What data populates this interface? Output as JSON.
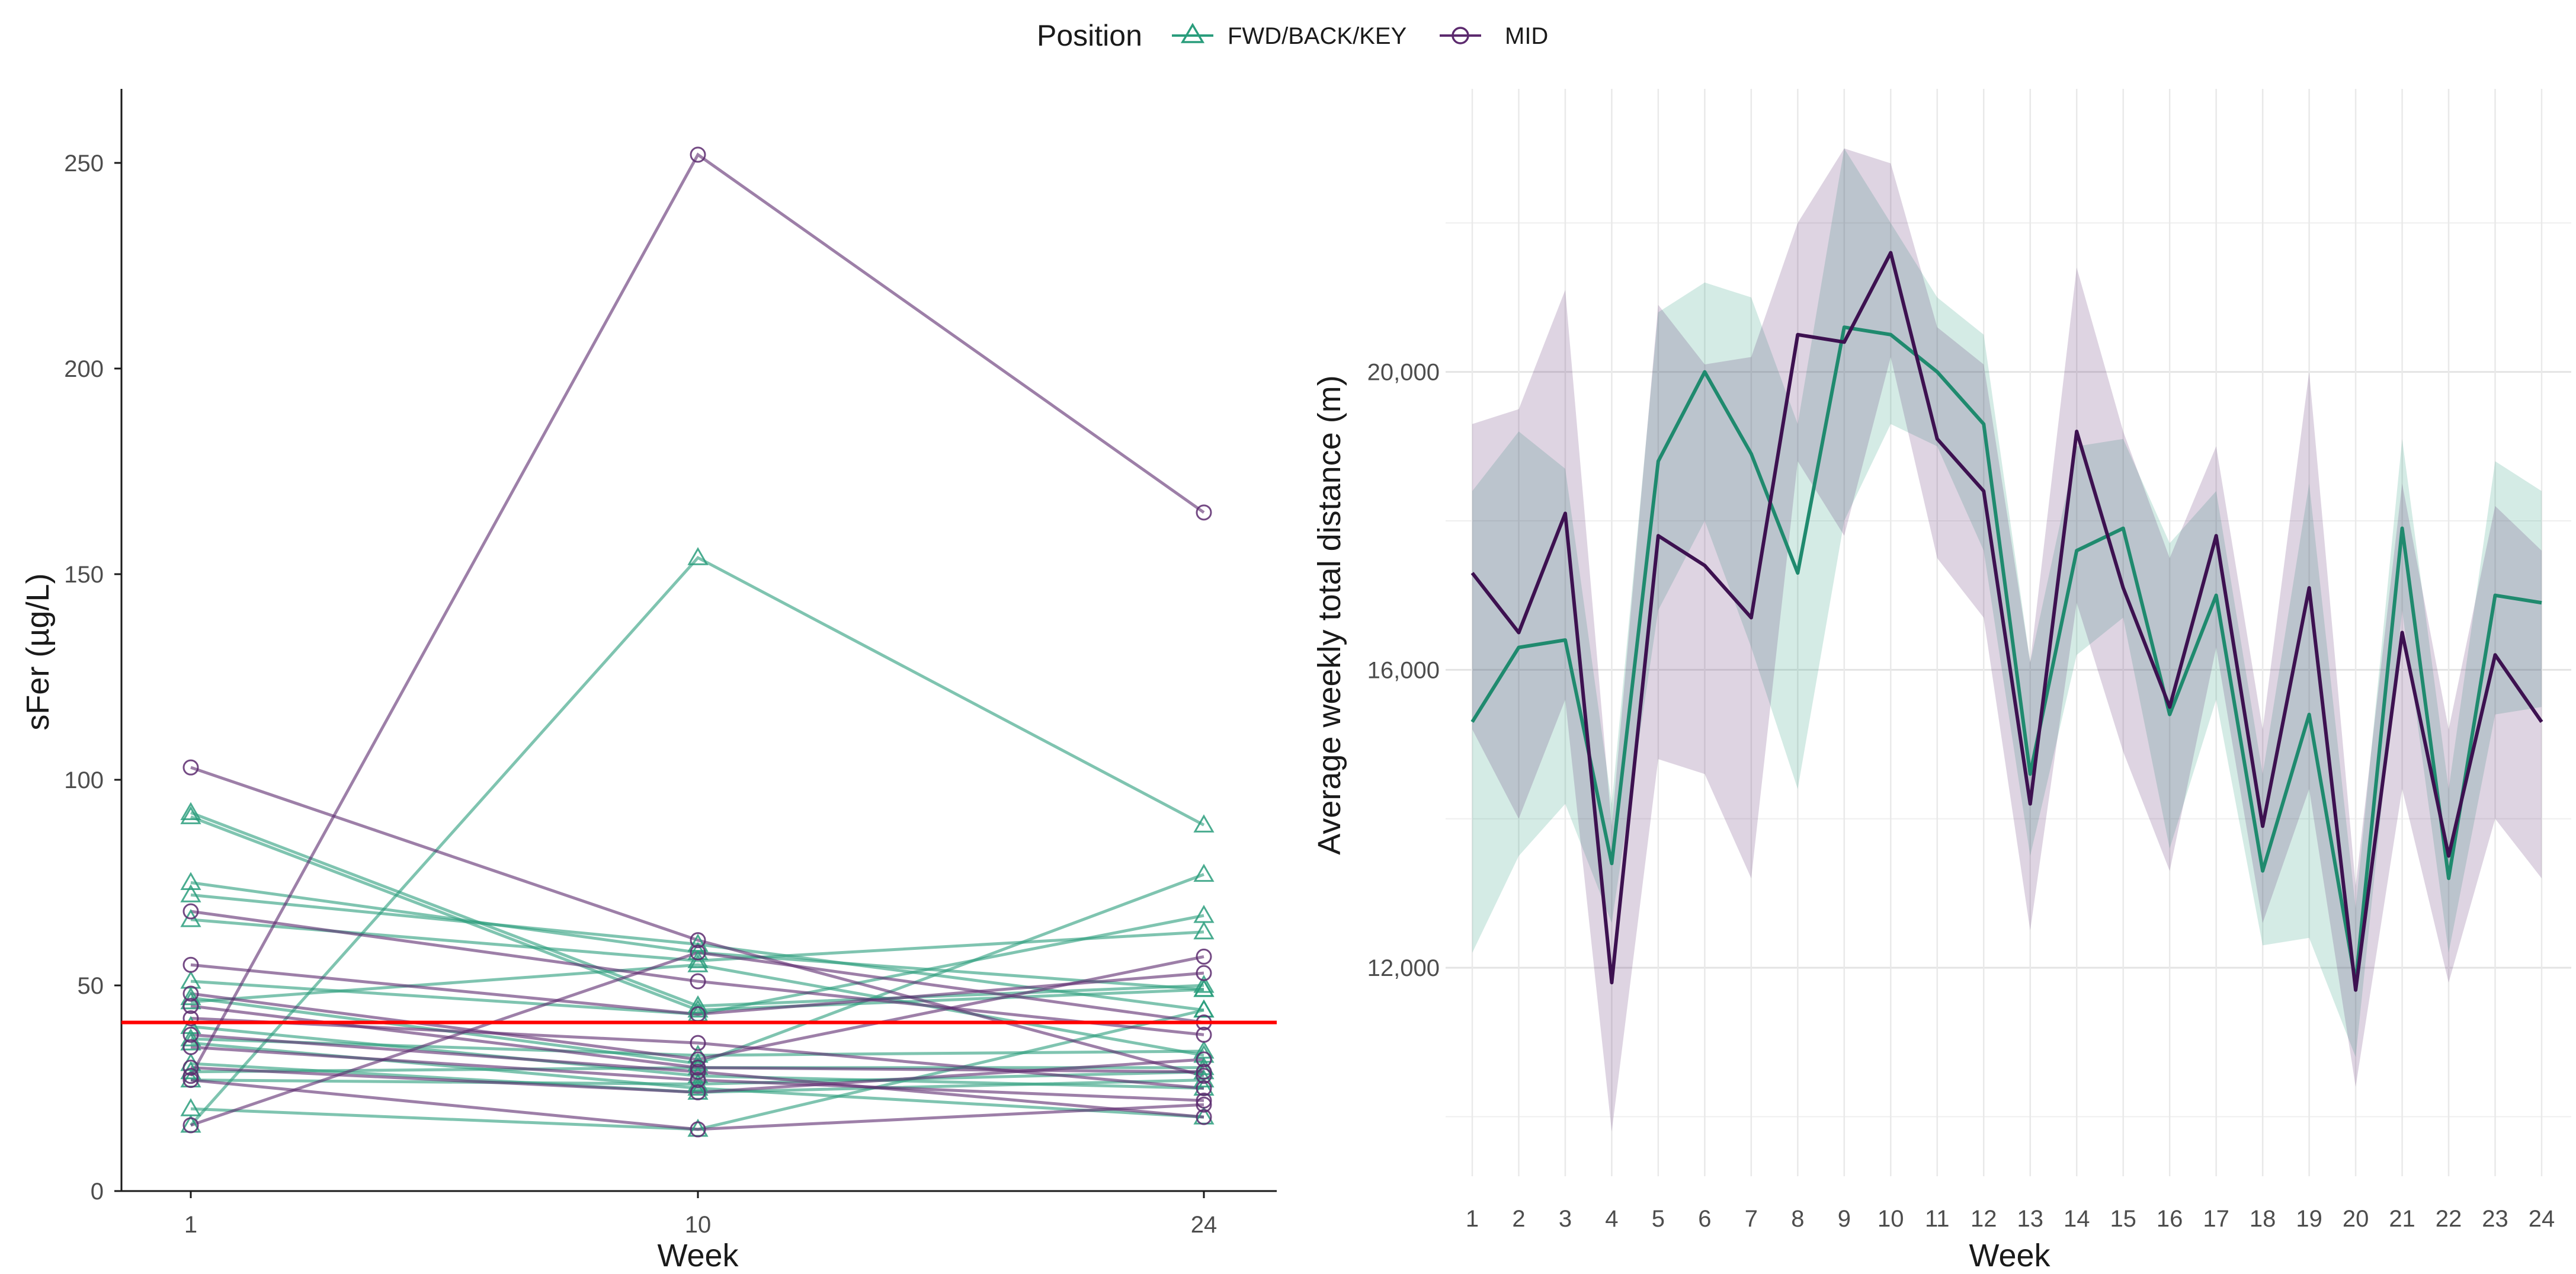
{
  "legend": {
    "title": "Position",
    "entries": [
      {
        "key": "FWD",
        "label": "FWD/BACK/KEY",
        "color": "#2a9d7c",
        "marker": "triangle"
      },
      {
        "key": "MID",
        "label": "MID",
        "color": "#5c2a6e",
        "marker": "circle"
      }
    ]
  },
  "reference_line_color": "#ff0000",
  "chart_data": [
    {
      "type": "line",
      "title": "",
      "xlabel": "Week",
      "ylabel": "sFer (µg/L)",
      "x_categories": [
        "1",
        "10",
        "24"
      ],
      "ylim": [
        0,
        268
      ],
      "y_ticks": [
        0,
        50,
        100,
        150,
        200,
        250
      ],
      "reference_line": 41,
      "series": [
        {
          "position": "FWD",
          "values": [
            92,
            45,
            50
          ]
        },
        {
          "position": "FWD",
          "values": [
            91,
            44,
            49
          ]
        },
        {
          "position": "FWD",
          "values": [
            75,
            58,
            49
          ]
        },
        {
          "position": "FWD",
          "values": [
            72,
            60,
            44
          ]
        },
        {
          "position": "FWD",
          "values": [
            66,
            56,
            63
          ]
        },
        {
          "position": "FWD",
          "values": [
            51,
            43,
            67
          ]
        },
        {
          "position": "FWD",
          "values": [
            47,
            31,
            77
          ]
        },
        {
          "position": "FWD",
          "values": [
            46,
            55,
            33
          ]
        },
        {
          "position": "FWD",
          "values": [
            37,
            33,
            34
          ]
        },
        {
          "position": "FWD",
          "values": [
            29,
            30,
            30
          ]
        },
        {
          "position": "FWD",
          "values": [
            27,
            26,
            29
          ]
        },
        {
          "position": "FWD",
          "values": [
            20,
            15,
            44
          ]
        },
        {
          "position": "FWD",
          "values": [
            16,
            154,
            89
          ]
        },
        {
          "position": "FWD",
          "values": [
            31,
            24,
            27
          ]
        },
        {
          "position": "FWD",
          "values": [
            36,
            25,
            18
          ]
        },
        {
          "position": "FWD",
          "values": [
            40,
            28,
            25
          ]
        },
        {
          "position": "MID",
          "values": [
            28,
            252,
            165
          ]
        },
        {
          "position": "MID",
          "values": [
            103,
            61,
            28
          ]
        },
        {
          "position": "MID",
          "values": [
            68,
            51,
            38
          ]
        },
        {
          "position": "MID",
          "values": [
            55,
            43,
            53
          ]
        },
        {
          "position": "MID",
          "values": [
            48,
            32,
            57
          ]
        },
        {
          "position": "MID",
          "values": [
            42,
            36,
            25
          ]
        },
        {
          "position": "MID",
          "values": [
            35,
            27,
            22
          ]
        },
        {
          "position": "MID",
          "values": [
            30,
            24,
            32
          ]
        },
        {
          "position": "MID",
          "values": [
            27,
            15,
            21
          ]
        },
        {
          "position": "MID",
          "values": [
            16,
            58,
            41
          ]
        },
        {
          "position": "MID",
          "values": [
            38,
            29,
            18
          ]
        },
        {
          "position": "MID",
          "values": [
            45,
            30,
            29
          ]
        }
      ]
    },
    {
      "type": "area",
      "title": "",
      "xlabel": "Week",
      "ylabel": "Average weekly total distance (m)",
      "x": [
        1,
        2,
        3,
        4,
        5,
        6,
        7,
        8,
        9,
        10,
        11,
        12,
        13,
        14,
        15,
        16,
        17,
        18,
        19,
        20,
        21,
        22,
        23,
        24
      ],
      "ylim": [
        9200,
        23800
      ],
      "y_ticks": [
        12000,
        16000,
        20000
      ],
      "y_tick_labels": [
        "12,000",
        "16,000",
        "20,000"
      ],
      "series": [
        {
          "name": "FWD/BACK/KEY",
          "position": "FWD",
          "mean": [
            15300,
            16300,
            16400,
            13400,
            18800,
            20000,
            18900,
            17300,
            20600,
            20500,
            20000,
            19300,
            14600,
            17600,
            17900,
            15400,
            17000,
            13300,
            15400,
            11800,
            17900,
            13200,
            17000,
            16900
          ],
          "lower": [
            12200,
            13500,
            14200,
            12600,
            16800,
            18000,
            16300,
            14400,
            18000,
            19300,
            19000,
            17600,
            13500,
            16200,
            16700,
            13600,
            15600,
            12300,
            12400,
            10800,
            16800,
            12200,
            15400,
            15500
          ],
          "upper": [
            18400,
            19200,
            18700,
            14200,
            20800,
            21200,
            21000,
            19300,
            23000,
            22000,
            21000,
            20500,
            16100,
            19000,
            19100,
            17700,
            18400,
            14600,
            18500,
            12800,
            19100,
            14400,
            18800,
            18400
          ]
        },
        {
          "name": "MID",
          "position": "MID",
          "mean": [
            17300,
            16500,
            18100,
            11800,
            17800,
            17400,
            16700,
            20500,
            20400,
            21600,
            19100,
            18400,
            14200,
            19200,
            17100,
            15500,
            17800,
            13900,
            17100,
            11700,
            16500,
            13500,
            16200,
            15300
          ],
          "lower": [
            15200,
            14000,
            15600,
            9800,
            14800,
            14600,
            13200,
            18800,
            17800,
            20200,
            17500,
            16700,
            12500,
            16900,
            14900,
            13300,
            16300,
            12600,
            14400,
            10400,
            14400,
            11800,
            14000,
            13200
          ],
          "upper": [
            19300,
            19500,
            21100,
            13900,
            20900,
            20100,
            20200,
            22000,
            23000,
            22800,
            20600,
            20100,
            16100,
            21400,
            19200,
            17500,
            19000,
            15200,
            20000,
            13100,
            18500,
            15200,
            18200,
            17600
          ]
        }
      ]
    }
  ]
}
